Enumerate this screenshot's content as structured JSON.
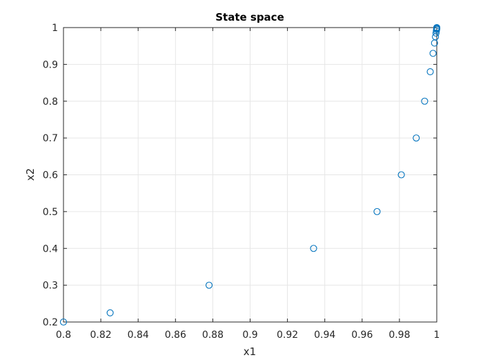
{
  "chart_data": {
    "type": "scatter",
    "title": "State space",
    "xlabel": "x1",
    "ylabel": "x2",
    "xlim": [
      0.8,
      1.0
    ],
    "ylim": [
      0.2,
      1.0
    ],
    "xticks": [
      0.8,
      0.82,
      0.84,
      0.86,
      0.88,
      0.9,
      0.92,
      0.94,
      0.96,
      0.98,
      1.0
    ],
    "xtick_labels": [
      "0.8",
      "0.82",
      "0.84",
      "0.86",
      "0.88",
      "0.9",
      "0.92",
      "0.94",
      "0.96",
      "0.98",
      "1"
    ],
    "yticks": [
      0.2,
      0.3,
      0.4,
      0.5,
      0.6,
      0.7,
      0.8,
      0.9,
      1.0
    ],
    "ytick_labels": [
      "0.2",
      "0.3",
      "0.4",
      "0.5",
      "0.6",
      "0.7",
      "0.8",
      "0.9",
      "1"
    ],
    "grid": true,
    "marker": "circle-open",
    "marker_color": "#0072bd",
    "series": [
      {
        "x": [
          0.8,
          0.825,
          0.878,
          0.934,
          0.968,
          0.981,
          0.989,
          0.9935,
          0.9965,
          0.998,
          0.9988,
          0.9993,
          0.9996,
          0.9998,
          0.9999,
          1.0,
          1.0,
          1.0
        ],
        "y": [
          0.2,
          0.225,
          0.3,
          0.4,
          0.5,
          0.6,
          0.7,
          0.8,
          0.88,
          0.93,
          0.958,
          0.975,
          0.985,
          0.991,
          0.995,
          0.997,
          0.999,
          1.0
        ]
      }
    ]
  }
}
